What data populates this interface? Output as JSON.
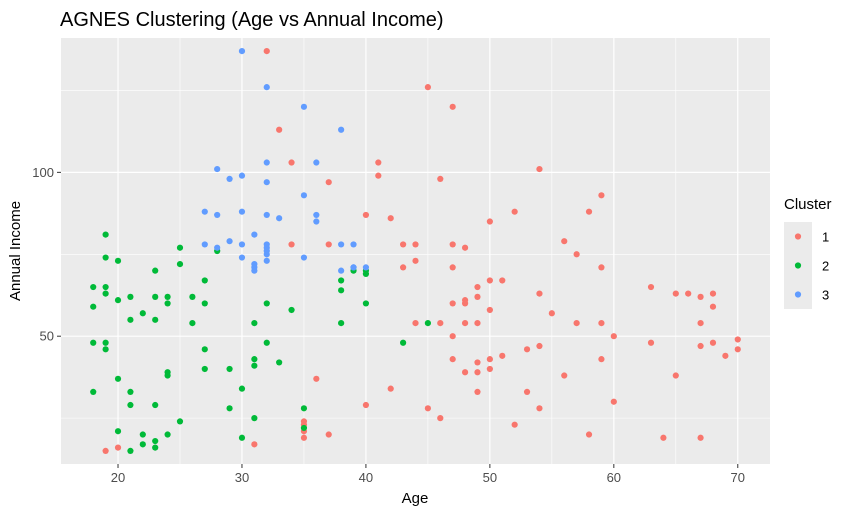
{
  "chart_data": {
    "type": "scatter",
    "title": "AGNES Clustering (Age vs Annual Income)",
    "xlabel": "Age",
    "ylabel": "Annual Income",
    "xlim": [
      15.4,
      72.6
    ],
    "ylim": [
      11.0,
      141.0
    ],
    "x_ticks": [
      20,
      30,
      40,
      50,
      60,
      70
    ],
    "y_ticks": [
      50,
      100
    ],
    "x_minor_ticks": [
      25,
      35,
      45,
      55,
      65
    ],
    "y_minor_ticks": [
      25,
      75,
      125
    ],
    "grid": true,
    "panel_background": "#EBEBEB",
    "legend": {
      "title": "Cluster",
      "position": "right",
      "entries": [
        {
          "label": "1",
          "color": "#F8766D"
        },
        {
          "label": "2",
          "color": "#00BA38"
        },
        {
          "label": "3",
          "color": "#619CFF"
        }
      ]
    },
    "series": [
      {
        "name": "1",
        "color": "#F8766D",
        "points": [
          [
            32,
            137
          ],
          [
            45,
            126
          ],
          [
            47,
            120
          ],
          [
            33,
            113
          ],
          [
            34,
            103
          ],
          [
            41,
            103
          ],
          [
            54,
            101
          ],
          [
            41,
            99
          ],
          [
            46,
            98
          ],
          [
            37,
            97
          ],
          [
            59,
            93
          ],
          [
            58,
            88
          ],
          [
            52,
            88
          ],
          [
            40,
            87
          ],
          [
            42,
            86
          ],
          [
            50,
            85
          ],
          [
            56,
            79
          ],
          [
            34,
            78
          ],
          [
            37,
            78
          ],
          [
            43,
            78
          ],
          [
            44,
            78
          ],
          [
            47,
            78
          ],
          [
            48,
            77
          ],
          [
            57,
            75
          ],
          [
            44,
            73
          ],
          [
            43,
            71
          ],
          [
            47,
            71
          ],
          [
            59,
            71
          ],
          [
            50,
            67
          ],
          [
            51,
            67
          ],
          [
            49,
            65
          ],
          [
            63,
            65
          ],
          [
            65,
            63
          ],
          [
            66,
            63
          ],
          [
            67,
            62
          ],
          [
            68,
            63
          ],
          [
            54,
            63
          ],
          [
            47,
            60
          ],
          [
            48,
            60
          ],
          [
            48,
            61
          ],
          [
            49,
            62
          ],
          [
            68,
            59
          ],
          [
            50,
            58
          ],
          [
            55,
            57
          ],
          [
            46,
            54
          ],
          [
            48,
            54
          ],
          [
            49,
            54
          ],
          [
            57,
            54
          ],
          [
            59,
            54
          ],
          [
            67,
            54
          ],
          [
            44,
            54
          ],
          [
            60,
            50
          ],
          [
            47,
            50
          ],
          [
            70,
            49
          ],
          [
            63,
            48
          ],
          [
            68,
            48
          ],
          [
            54,
            47
          ],
          [
            53,
            46
          ],
          [
            67,
            47
          ],
          [
            70,
            46
          ],
          [
            51,
            44
          ],
          [
            69,
            44
          ],
          [
            59,
            43
          ],
          [
            47,
            43
          ],
          [
            50,
            43
          ],
          [
            49,
            42
          ],
          [
            50,
            40
          ],
          [
            48,
            39
          ],
          [
            49,
            39
          ],
          [
            56,
            38
          ],
          [
            65,
            38
          ],
          [
            36,
            37
          ],
          [
            42,
            34
          ],
          [
            53,
            33
          ],
          [
            49,
            33
          ],
          [
            60,
            30
          ],
          [
            40,
            29
          ],
          [
            54,
            28
          ],
          [
            45,
            28
          ],
          [
            46,
            25
          ],
          [
            52,
            23
          ],
          [
            35,
            24
          ],
          [
            35,
            23
          ],
          [
            35,
            21
          ],
          [
            37,
            20
          ],
          [
            58,
            20
          ],
          [
            35,
            19
          ],
          [
            64,
            19
          ],
          [
            67,
            19
          ],
          [
            31,
            17
          ],
          [
            20,
            16
          ],
          [
            19,
            15
          ]
        ]
      },
      {
        "name": "2",
        "color": "#00BA38",
        "points": [
          [
            19,
            81
          ],
          [
            28,
            76
          ],
          [
            25,
            77
          ],
          [
            20,
            73
          ],
          [
            19,
            74
          ],
          [
            25,
            72
          ],
          [
            23,
            70
          ],
          [
            40,
            70
          ],
          [
            39,
            70
          ],
          [
            40,
            69
          ],
          [
            38,
            67
          ],
          [
            27,
            67
          ],
          [
            18,
            65
          ],
          [
            19,
            65
          ],
          [
            38,
            64
          ],
          [
            19,
            63
          ],
          [
            24,
            62
          ],
          [
            26,
            62
          ],
          [
            21,
            62
          ],
          [
            20,
            61
          ],
          [
            23,
            62
          ],
          [
            27,
            60
          ],
          [
            24,
            60
          ],
          [
            40,
            60
          ],
          [
            32,
            60
          ],
          [
            34,
            58
          ],
          [
            22,
            57
          ],
          [
            18,
            59
          ],
          [
            21,
            55
          ],
          [
            23,
            55
          ],
          [
            38,
            54
          ],
          [
            26,
            54
          ],
          [
            31,
            54
          ],
          [
            45,
            54
          ],
          [
            18,
            48
          ],
          [
            19,
            48
          ],
          [
            43,
            48
          ],
          [
            32,
            48
          ],
          [
            19,
            46
          ],
          [
            27,
            46
          ],
          [
            31,
            43
          ],
          [
            33,
            42
          ],
          [
            31,
            41
          ],
          [
            27,
            40
          ],
          [
            29,
            40
          ],
          [
            24,
            39
          ],
          [
            24,
            38
          ],
          [
            20,
            37
          ],
          [
            30,
            34
          ],
          [
            18,
            33
          ],
          [
            21,
            33
          ],
          [
            21,
            29
          ],
          [
            23,
            29
          ],
          [
            29,
            28
          ],
          [
            35,
            28
          ],
          [
            25,
            24
          ],
          [
            31,
            25
          ],
          [
            35,
            22
          ],
          [
            20,
            21
          ],
          [
            22,
            20
          ],
          [
            24,
            20
          ],
          [
            30,
            19
          ],
          [
            23,
            18
          ],
          [
            22,
            17
          ],
          [
            23,
            16
          ],
          [
            21,
            15
          ]
        ]
      },
      {
        "name": "3",
        "color": "#619CFF",
        "points": [
          [
            30,
            137
          ],
          [
            32,
            126
          ],
          [
            35,
            120
          ],
          [
            38,
            113
          ],
          [
            32,
            103
          ],
          [
            36,
            103
          ],
          [
            28,
            101
          ],
          [
            30,
            99
          ],
          [
            29,
            98
          ],
          [
            32,
            97
          ],
          [
            35,
            93
          ],
          [
            30,
            88
          ],
          [
            27,
            88
          ],
          [
            36,
            87
          ],
          [
            28,
            87
          ],
          [
            32,
            87
          ],
          [
            33,
            86
          ],
          [
            36,
            85
          ],
          [
            31,
            81
          ],
          [
            29,
            79
          ],
          [
            30,
            78
          ],
          [
            27,
            78
          ],
          [
            32,
            78
          ],
          [
            28,
            77
          ],
          [
            32,
            77
          ],
          [
            32,
            76
          ],
          [
            38,
            78
          ],
          [
            39,
            78
          ],
          [
            32,
            75
          ],
          [
            30,
            74
          ],
          [
            35,
            74
          ],
          [
            32,
            73
          ],
          [
            31,
            72
          ],
          [
            31,
            71
          ],
          [
            39,
            71
          ],
          [
            40,
            71
          ],
          [
            39,
            71
          ],
          [
            38,
            70
          ],
          [
            31,
            70
          ]
        ]
      }
    ]
  }
}
